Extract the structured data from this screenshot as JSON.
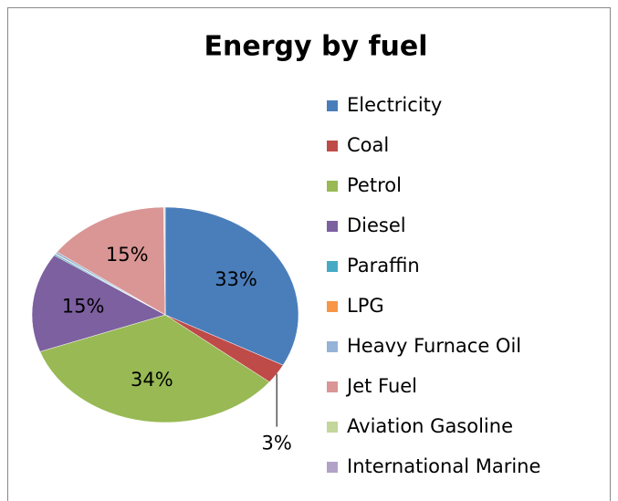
{
  "chart_data": {
    "type": "pie",
    "title": "Energy by fuel",
    "categories": [
      "Electricity",
      "Coal",
      "Petrol",
      "Diesel",
      "Paraffin",
      "LPG",
      "Heavy Furnace Oil",
      "Jet Fuel",
      "Aviation Gasoline",
      "International Marine"
    ],
    "values": [
      33,
      3,
      34,
      15,
      0.2,
      0.1,
      0.3,
      15,
      0.1,
      0.1
    ],
    "value_labels": [
      "33%",
      "3%",
      "34%",
      "15%",
      null,
      null,
      null,
      "15%",
      null,
      null
    ],
    "colors": [
      "#4a7ebb",
      "#be4b48",
      "#98b954",
      "#7d60a0",
      "#46aac5",
      "#f79646",
      "#95b3d7",
      "#d99694",
      "#c3d69b",
      "#b3a2c7"
    ],
    "legend": "right"
  }
}
